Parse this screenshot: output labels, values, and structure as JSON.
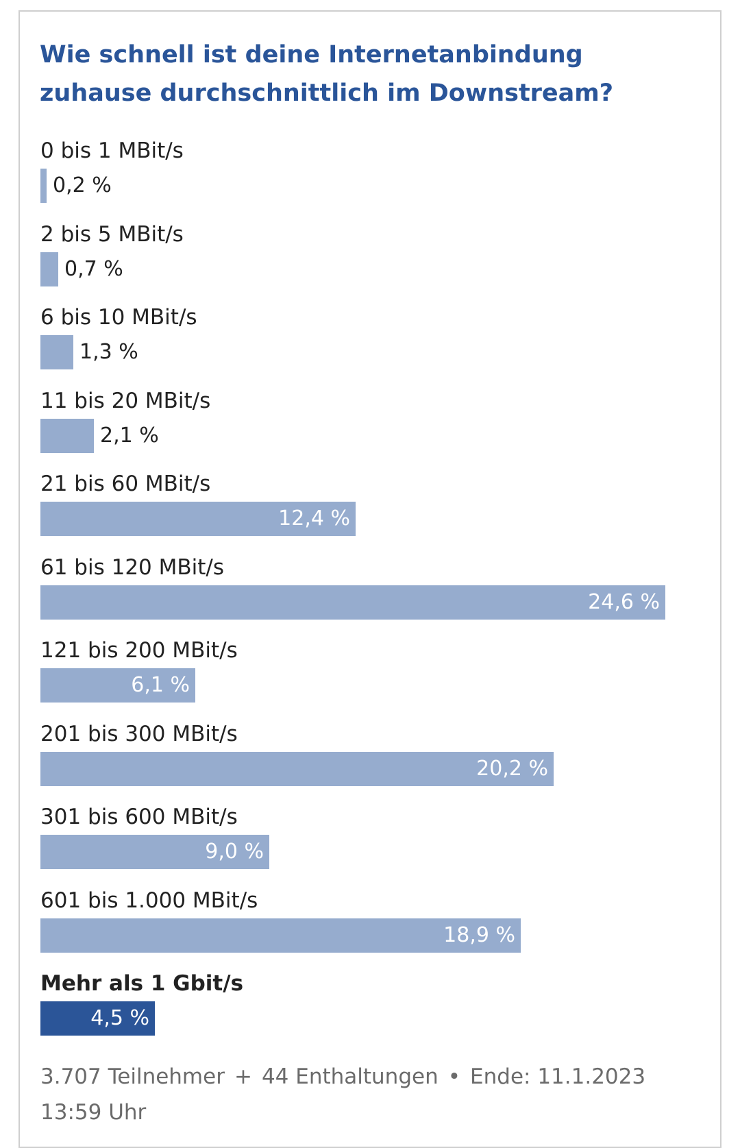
{
  "chart_data": {
    "type": "bar",
    "title": "Wie schnell ist deine Internetanbindung zuhause durchschnittlich im Downstream?",
    "orientation": "horizontal",
    "categories": [
      "0 bis 1 MBit/s",
      "2 bis 5 MBit/s",
      "6 bis 10 MBit/s",
      "11 bis 20 MBit/s",
      "21 bis 60 MBit/s",
      "61 bis 120 MBit/s",
      "121 bis 200 MBit/s",
      "201 bis 300 MBit/s",
      "301 bis 600 MBit/s",
      "601 bis 1.000 MBit/s",
      "Mehr als 1 Gbit/s"
    ],
    "values": [
      0.2,
      0.7,
      1.3,
      2.1,
      12.4,
      24.6,
      6.1,
      20.2,
      9.0,
      18.9,
      4.5
    ],
    "value_labels": [
      "0,2 %",
      "0,7 %",
      "1,3 %",
      "2,1 %",
      "12,4 %",
      "24,6 %",
      "6,1 %",
      "20,2 %",
      "9,0 %",
      "18,9 %",
      "4,5 %"
    ],
    "unit": "%",
    "highlighted_category": "Mehr als 1 Gbit/s",
    "colors": {
      "bar": "#96acce",
      "highlight_bar": "#2b5598",
      "title": "#2a5599"
    }
  },
  "footer": {
    "participants": "3.707 Teilnehmer",
    "plus": "+",
    "abstentions": "44 Enthaltungen",
    "bullet": "•",
    "end": "Ende: 11.1.2023 13:59 Uhr"
  }
}
